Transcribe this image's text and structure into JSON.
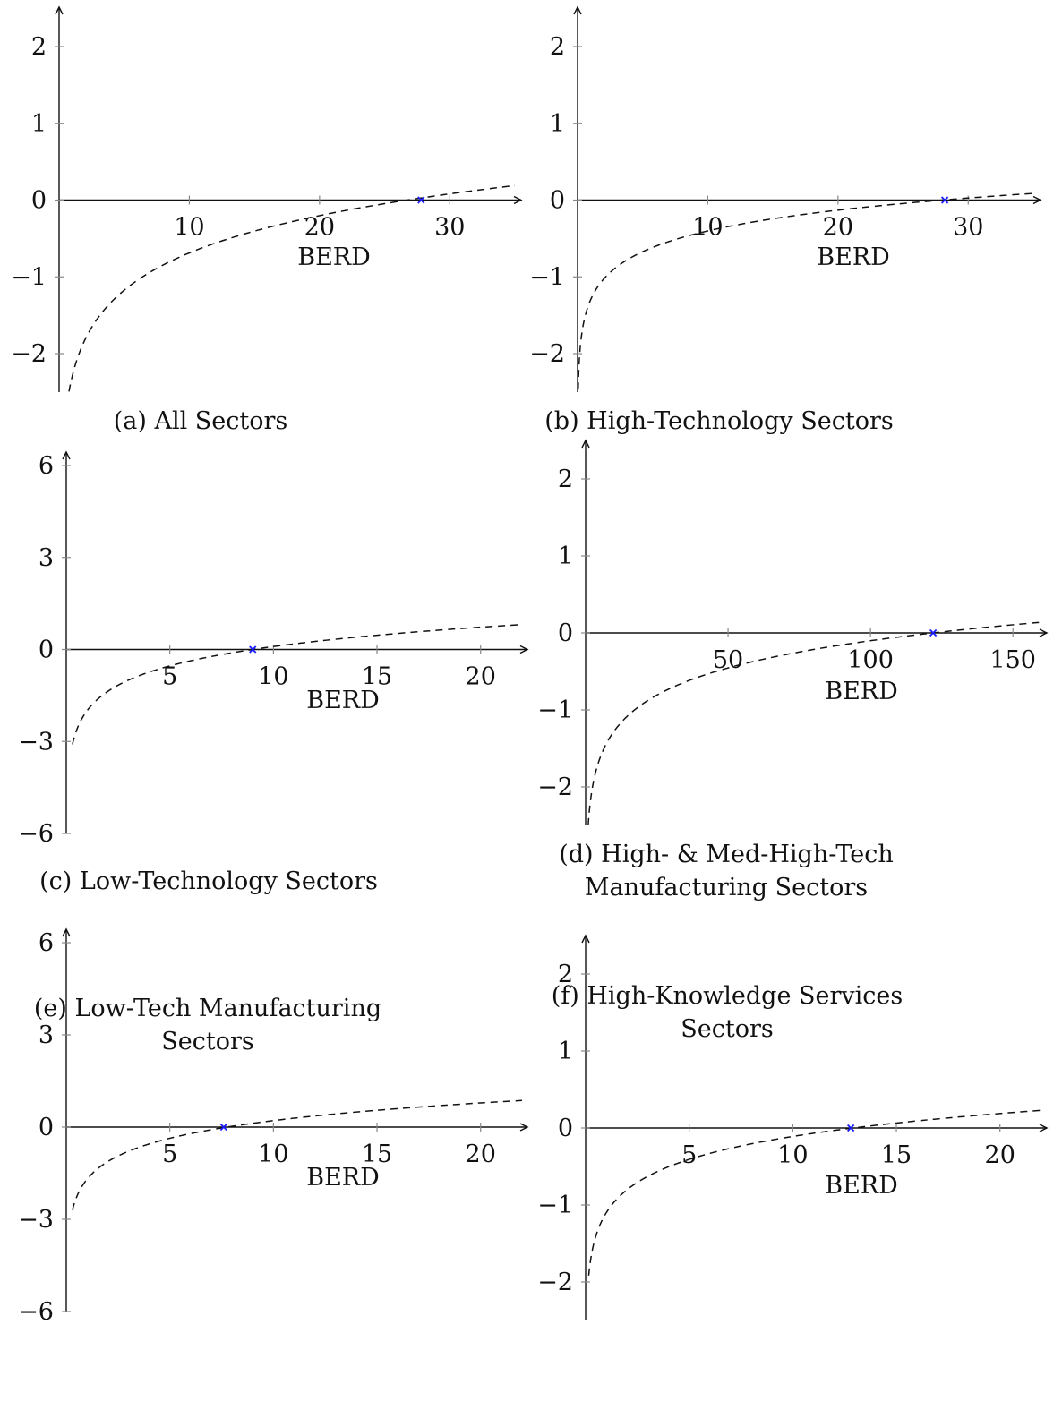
{
  "chart_data": [
    {
      "type": "line",
      "caption": "(a) All Sectors",
      "xlabel": "BERD",
      "ylabel": "",
      "xlim": [
        0,
        35
      ],
      "ylim": [
        -2.5,
        2.5
      ],
      "xticks": [
        10,
        20,
        30
      ],
      "yticks": [
        -2,
        -1,
        0,
        1,
        2
      ],
      "curve": {
        "a": -2.3,
        "b": 0.7,
        "x_start": 0.05,
        "x_end": 35
      },
      "zero_crossing": 27.8,
      "style": "dashed",
      "marker_color": "#1a1aff"
    },
    {
      "type": "line",
      "caption": "(b) High-Technology Sectors",
      "xlabel": "BERD",
      "ylabel": "",
      "xlim": [
        0,
        35
      ],
      "ylim": [
        -2.5,
        2.5
      ],
      "xticks": [
        10,
        20,
        30
      ],
      "yticks": [
        -2,
        -1,
        0,
        1,
        2
      ],
      "curve": {
        "a": -1.3,
        "b": 0.39,
        "x_start": 0.05,
        "x_end": 35
      },
      "zero_crossing": 28.2,
      "style": "dashed",
      "marker_color": "#1a1aff"
    },
    {
      "type": "line",
      "caption": "(c) Low-Technology Sectors",
      "xlabel": "BERD",
      "ylabel": "",
      "xlim": [
        0,
        22
      ],
      "ylim": [
        -6,
        6
      ],
      "xticks": [
        5,
        10,
        15,
        20
      ],
      "yticks": [
        -6,
        -3,
        0,
        3,
        6
      ],
      "curve": {
        "a": -2.0,
        "b": 0.91,
        "x_start": 0.3,
        "x_end": 22
      },
      "zero_crossing": 9.0,
      "style": "dashed",
      "marker_color": "#1a1aff"
    },
    {
      "type": "line",
      "caption": "(d) High- & Med-High-Tech Manufacturing Sectors",
      "caption_lines": [
        "(d) High- & Med-High-Tech",
        "Manufacturing Sectors"
      ],
      "xlabel": "BERD",
      "ylabel": "",
      "xlim": [
        0,
        160
      ],
      "ylim": [
        -2.5,
        2.5
      ],
      "xticks": [
        50,
        100,
        150
      ],
      "yticks": [
        -2,
        -1,
        0,
        1,
        2
      ],
      "curve": {
        "a": -2.45,
        "b": 0.51,
        "x_start": 0.9,
        "x_end": 160
      },
      "zero_crossing": 122,
      "style": "dashed",
      "marker_color": "#1a1aff"
    },
    {
      "type": "line",
      "caption": "(e) Low-Tech Manufacturing Sectors",
      "caption_lines": [
        "(e) Low-Tech Manufacturing",
        "Sectors"
      ],
      "xlabel": "BERD",
      "ylabel": "",
      "xlim": [
        0,
        22
      ],
      "ylim": [
        -6,
        6
      ],
      "xticks": [
        5,
        10,
        15,
        20
      ],
      "yticks": [
        -6,
        -3,
        0,
        3,
        6
      ],
      "curve": {
        "a": -1.7,
        "b": 0.83,
        "x_start": 0.3,
        "x_end": 22
      },
      "zero_crossing": 7.6,
      "style": "dashed",
      "marker_color": "#1a1aff"
    },
    {
      "type": "line",
      "caption": "(f) High-Knowledge Services Sectors",
      "caption_lines": [
        "(f) High-Knowledge Services",
        "Sectors"
      ],
      "xlabel": "BERD",
      "ylabel": "",
      "xlim": [
        0,
        22
      ],
      "ylim": [
        -2.5,
        2.5
      ],
      "xticks": [
        5,
        10,
        15,
        20
      ],
      "yticks": [
        -2,
        -1,
        0,
        1,
        2
      ],
      "curve": {
        "a": -1.1,
        "b": 0.43,
        "x_start": 0.15,
        "x_end": 22
      },
      "zero_crossing": 12.8,
      "style": "dashed",
      "marker_color": "#1a1aff"
    }
  ]
}
